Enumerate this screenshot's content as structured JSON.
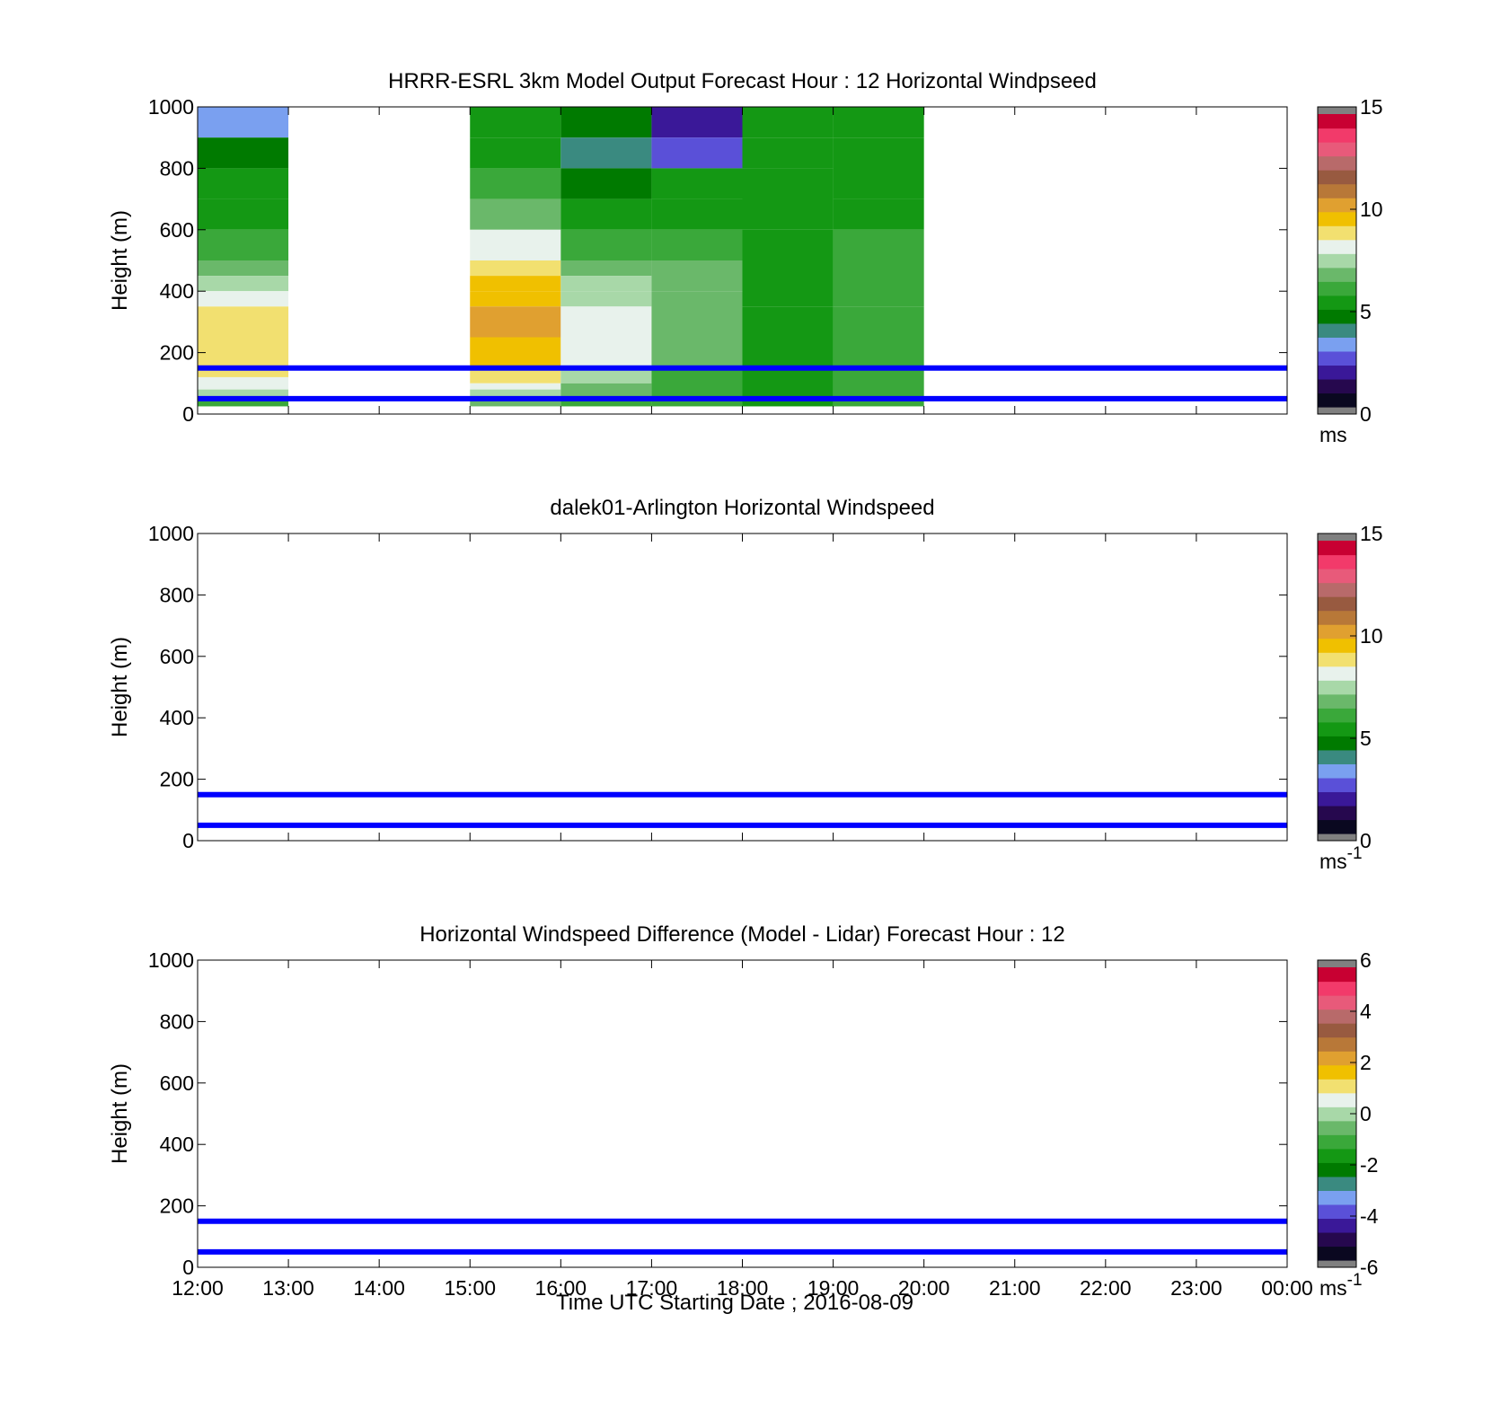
{
  "figure": {
    "xlabel": "Time UTC  Starting Date ; 2016-08-09",
    "x_ticks": [
      "12:00",
      "13:00",
      "14:00",
      "15:00",
      "16:00",
      "17:00",
      "18:00",
      "19:00",
      "20:00",
      "21:00",
      "22:00",
      "23:00",
      "00:00"
    ]
  },
  "colors": {
    "reference_lines": "#0000ff",
    "wind_colormap": [
      "#0a0820",
      "#26084e",
      "#3a1898",
      "#5a50d8",
      "#7aa0f0",
      "#3a8a80",
      "#007a00",
      "#149814",
      "#3aa83a",
      "#6ab86a",
      "#a8d8a8",
      "#e8f2ec",
      "#f2e070",
      "#f0c000",
      "#e0a030",
      "#b87838",
      "#985a40",
      "#b86a6a",
      "#e85a7a",
      "#f23a6a",
      "#c80032"
    ],
    "end_caps": "#808080"
  },
  "chart_data": [
    {
      "type": "heatmap",
      "title": "HRRR-ESRL 3km Model Output   Forecast Hour : 12 Horizontal Windpseed",
      "ylabel": "Height (m)",
      "xlim_hours": [
        12,
        24
      ],
      "ylim": [
        0,
        1000
      ],
      "y_ticks": [
        "0",
        "200",
        "400",
        "600",
        "800",
        "1000"
      ],
      "reference_lines_m": [
        150,
        50
      ],
      "colorbar": {
        "range": [
          0,
          15
        ],
        "ticks": [
          "0",
          "5",
          "10",
          "15"
        ],
        "label": "ms",
        "label_sup": ""
      },
      "cells": [
        {
          "t": 12,
          "z_bottom": 900,
          "z_top": 1000,
          "value": 3.5
        },
        {
          "t": 12,
          "z_bottom": 800,
          "z_top": 900,
          "value": 4.3
        },
        {
          "t": 12,
          "z_bottom": 700,
          "z_top": 800,
          "value": 5.0
        },
        {
          "t": 12,
          "z_bottom": 600,
          "z_top": 700,
          "value": 5.5
        },
        {
          "t": 12,
          "z_bottom": 500,
          "z_top": 600,
          "value": 6.2
        },
        {
          "t": 12,
          "z_bottom": 450,
          "z_top": 500,
          "value": 7.0
        },
        {
          "t": 12,
          "z_bottom": 400,
          "z_top": 450,
          "value": 7.5
        },
        {
          "t": 12,
          "z_bottom": 350,
          "z_top": 400,
          "value": 8.2
        },
        {
          "t": 12,
          "z_bottom": 120,
          "z_top": 350,
          "value": 8.8
        },
        {
          "t": 12,
          "z_bottom": 80,
          "z_top": 120,
          "value": 8.3
        },
        {
          "t": 12,
          "z_bottom": 55,
          "z_top": 80,
          "value": 7.6
        },
        {
          "t": 12,
          "z_bottom": 25,
          "z_top": 50,
          "value": 6.0
        },
        {
          "t": 15,
          "z_bottom": 900,
          "z_top": 1000,
          "value": 5.2
        },
        {
          "t": 15,
          "z_bottom": 800,
          "z_top": 900,
          "value": 5.4
        },
        {
          "t": 15,
          "z_bottom": 700,
          "z_top": 800,
          "value": 6.0
        },
        {
          "t": 15,
          "z_bottom": 600,
          "z_top": 700,
          "value": 6.7
        },
        {
          "t": 15,
          "z_bottom": 500,
          "z_top": 600,
          "value": 8.4
        },
        {
          "t": 15,
          "z_bottom": 450,
          "z_top": 500,
          "value": 9.0
        },
        {
          "t": 15,
          "z_bottom": 400,
          "z_top": 450,
          "value": 9.4
        },
        {
          "t": 15,
          "z_bottom": 350,
          "z_top": 400,
          "value": 9.8
        },
        {
          "t": 15,
          "z_bottom": 250,
          "z_top": 350,
          "value": 10.3
        },
        {
          "t": 15,
          "z_bottom": 150,
          "z_top": 250,
          "value": 9.6
        },
        {
          "t": 15,
          "z_bottom": 100,
          "z_top": 150,
          "value": 8.9
        },
        {
          "t": 15,
          "z_bottom": 80,
          "z_top": 100,
          "value": 8.1
        },
        {
          "t": 15,
          "z_bottom": 55,
          "z_top": 80,
          "value": 7.6
        },
        {
          "t": 15,
          "z_bottom": 25,
          "z_top": 50,
          "value": 6.9
        },
        {
          "t": 16,
          "z_bottom": 900,
          "z_top": 1000,
          "value": 4.3
        },
        {
          "t": 16,
          "z_bottom": 800,
          "z_top": 900,
          "value": 3.8
        },
        {
          "t": 16,
          "z_bottom": 700,
          "z_top": 800,
          "value": 4.3
        },
        {
          "t": 16,
          "z_bottom": 600,
          "z_top": 700,
          "value": 5.0
        },
        {
          "t": 16,
          "z_bottom": 500,
          "z_top": 600,
          "value": 6.0
        },
        {
          "t": 16,
          "z_bottom": 450,
          "z_top": 500,
          "value": 6.5
        },
        {
          "t": 16,
          "z_bottom": 400,
          "z_top": 450,
          "value": 7.2
        },
        {
          "t": 16,
          "z_bottom": 350,
          "z_top": 400,
          "value": 7.7
        },
        {
          "t": 16,
          "z_bottom": 250,
          "z_top": 350,
          "value": 8.4
        },
        {
          "t": 16,
          "z_bottom": 150,
          "z_top": 250,
          "value": 8.1
        },
        {
          "t": 16,
          "z_bottom": 100,
          "z_top": 150,
          "value": 7.5
        },
        {
          "t": 16,
          "z_bottom": 55,
          "z_top": 100,
          "value": 6.8
        },
        {
          "t": 16,
          "z_bottom": 25,
          "z_top": 50,
          "value": 6.1
        },
        {
          "t": 17,
          "z_bottom": 900,
          "z_top": 1000,
          "value": 2.0
        },
        {
          "t": 17,
          "z_bottom": 800,
          "z_top": 900,
          "value": 2.8
        },
        {
          "t": 17,
          "z_bottom": 700,
          "z_top": 800,
          "value": 5.1
        },
        {
          "t": 17,
          "z_bottom": 600,
          "z_top": 700,
          "value": 5.5
        },
        {
          "t": 17,
          "z_bottom": 500,
          "z_top": 600,
          "value": 6.2
        },
        {
          "t": 17,
          "z_bottom": 400,
          "z_top": 500,
          "value": 6.5
        },
        {
          "t": 17,
          "z_bottom": 250,
          "z_top": 400,
          "value": 6.8
        },
        {
          "t": 17,
          "z_bottom": 150,
          "z_top": 250,
          "value": 6.5
        },
        {
          "t": 17,
          "z_bottom": 55,
          "z_top": 150,
          "value": 6.1
        },
        {
          "t": 17,
          "z_bottom": 25,
          "z_top": 50,
          "value": 5.8
        },
        {
          "t": 18,
          "z_bottom": 900,
          "z_top": 1000,
          "value": 5.1
        },
        {
          "t": 18,
          "z_bottom": 800,
          "z_top": 900,
          "value": 5.0
        },
        {
          "t": 18,
          "z_bottom": 600,
          "z_top": 800,
          "value": 5.2
        },
        {
          "t": 18,
          "z_bottom": 350,
          "z_top": 600,
          "value": 5.4
        },
        {
          "t": 18,
          "z_bottom": 150,
          "z_top": 350,
          "value": 5.6
        },
        {
          "t": 18,
          "z_bottom": 25,
          "z_top": 150,
          "value": 5.2
        },
        {
          "t": 19,
          "z_bottom": 900,
          "z_top": 1000,
          "value": 5.2
        },
        {
          "t": 19,
          "z_bottom": 700,
          "z_top": 900,
          "value": 5.3
        },
        {
          "t": 19,
          "z_bottom": 600,
          "z_top": 700,
          "value": 5.6
        },
        {
          "t": 19,
          "z_bottom": 350,
          "z_top": 600,
          "value": 5.8
        },
        {
          "t": 19,
          "z_bottom": 150,
          "z_top": 350,
          "value": 6.0
        },
        {
          "t": 19,
          "z_bottom": 25,
          "z_top": 150,
          "value": 5.9
        }
      ]
    },
    {
      "type": "heatmap",
      "title": "dalek01-Arlington  Horizontal Windspeed",
      "ylabel": "Height (m)",
      "xlim_hours": [
        12,
        24
      ],
      "ylim": [
        0,
        1000
      ],
      "y_ticks": [
        "0",
        "200",
        "400",
        "600",
        "800",
        "1000"
      ],
      "reference_lines_m": [
        150,
        50
      ],
      "colorbar": {
        "range": [
          0,
          15
        ],
        "ticks": [
          "0",
          "5",
          "10",
          "15"
        ],
        "label": "ms",
        "label_sup": "-1"
      },
      "cells": []
    },
    {
      "type": "heatmap",
      "title": "Horizontal Windspeed Difference (Model - Lidar) Forecast Hour : 12",
      "ylabel": "Height (m)",
      "xlim_hours": [
        12,
        24
      ],
      "ylim": [
        0,
        1000
      ],
      "y_ticks": [
        "0",
        "200",
        "400",
        "600",
        "800",
        "1000"
      ],
      "reference_lines_m": [
        150,
        50
      ],
      "colorbar": {
        "range": [
          -6,
          6
        ],
        "ticks": [
          "-6",
          "-4",
          "-2",
          "0",
          "2",
          "4",
          "6"
        ],
        "label": "ms",
        "label_sup": "-1"
      },
      "cells": []
    }
  ]
}
